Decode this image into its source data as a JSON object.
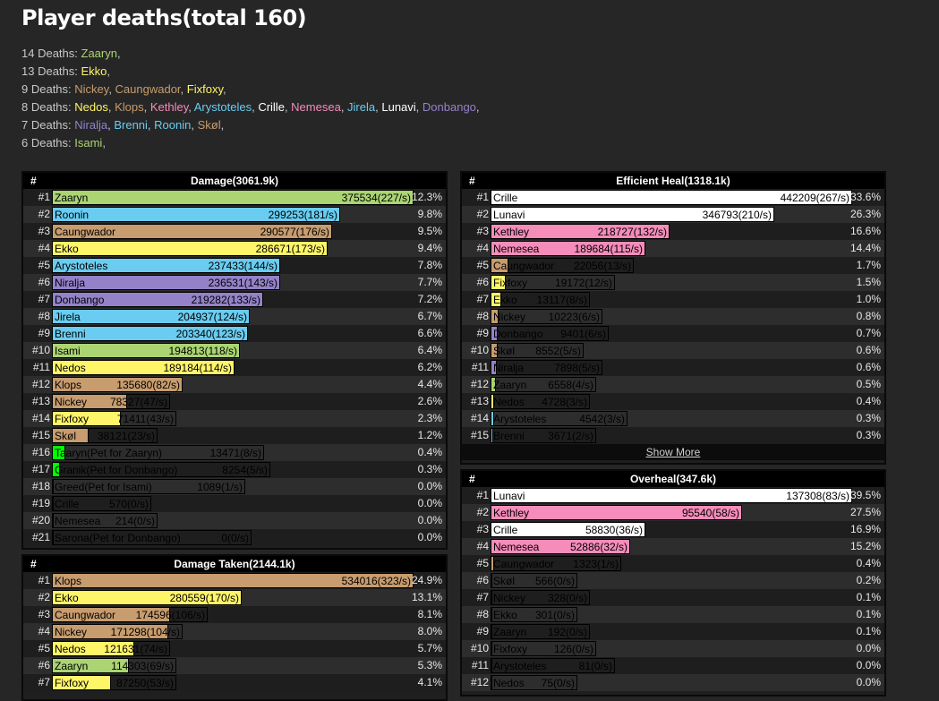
{
  "title": "Player deaths(total 160)",
  "colors": {
    "Hunter": "#abd473",
    "Mage": "#69ccf0",
    "Druid": "#ff7d0a",
    "Warrior": "#c79c6e",
    "Rogue": "#fff569",
    "Paladin": "#f58cba",
    "Priest": "#ffffff",
    "Warlock": "#9482c9",
    "Pet": "#00ff00",
    "Other": "#555555"
  },
  "deaths": [
    {
      "count": "14 Deaths:",
      "players": [
        {
          "name": "Zaaryn",
          "color": "#abd473"
        }
      ]
    },
    {
      "count": "13 Deaths:",
      "players": [
        {
          "name": "Ekko",
          "color": "#fff569"
        }
      ]
    },
    {
      "count": "9 Deaths:",
      "players": [
        {
          "name": "Nickey",
          "color": "#c79c6e"
        },
        {
          "name": "Caungwador",
          "color": "#c79c6e"
        },
        {
          "name": "Fixfoxy",
          "color": "#fff569"
        }
      ]
    },
    {
      "count": "8 Deaths:",
      "players": [
        {
          "name": "Nedos",
          "color": "#fff569"
        },
        {
          "name": "Klops",
          "color": "#c79c6e"
        },
        {
          "name": "Kethley",
          "color": "#f58cba"
        },
        {
          "name": "Arystoteles",
          "color": "#69ccf0"
        },
        {
          "name": "Crille",
          "color": "#ffffff"
        },
        {
          "name": "Nemesea",
          "color": "#f58cba"
        },
        {
          "name": "Jirela",
          "color": "#69ccf0"
        },
        {
          "name": "Lunavi",
          "color": "#ffffff"
        },
        {
          "name": "Donbango",
          "color": "#9482c9"
        }
      ]
    },
    {
      "count": "7 Deaths:",
      "players": [
        {
          "name": "Niralja",
          "color": "#9482c9"
        },
        {
          "name": "Brenni",
          "color": "#69ccf0"
        },
        {
          "name": "Roonin",
          "color": "#69ccf0"
        },
        {
          "name": "Skøl",
          "color": "#c79c6e"
        }
      ]
    },
    {
      "count": "6 Deaths:",
      "players": [
        {
          "name": "Isami",
          "color": "#abd473"
        }
      ]
    }
  ],
  "panels": [
    {
      "id": "damage",
      "hash": "#",
      "title": "Damage(3061.9k)",
      "rows": [
        {
          "rank": "#1",
          "name": "Zaaryn",
          "value": "375534(227/s)",
          "pct": "12.3%",
          "fill": 1.0,
          "color": "#abd473"
        },
        {
          "rank": "#2",
          "name": "Roonin",
          "value": "299253(181/s)",
          "pct": "9.8%",
          "fill": 0.797,
          "color": "#69ccf0"
        },
        {
          "rank": "#3",
          "name": "Caungwador",
          "value": "290577(176/s)",
          "pct": "9.5%",
          "fill": 0.774,
          "color": "#c79c6e"
        },
        {
          "rank": "#4",
          "name": "Ekko",
          "value": "286671(173/s)",
          "pct": "9.4%",
          "fill": 0.763,
          "color": "#fff569"
        },
        {
          "rank": "#5",
          "name": "Arystoteles",
          "value": "237433(144/s)",
          "pct": "7.8%",
          "fill": 0.632,
          "color": "#69ccf0"
        },
        {
          "rank": "#6",
          "name": "Niralja",
          "value": "236531(143/s)",
          "pct": "7.7%",
          "fill": 0.63,
          "color": "#9482c9"
        },
        {
          "rank": "#7",
          "name": "Donbango",
          "value": "219282(133/s)",
          "pct": "7.2%",
          "fill": 0.584,
          "color": "#9482c9"
        },
        {
          "rank": "#8",
          "name": "Jirela",
          "value": "204937(124/s)",
          "pct": "6.7%",
          "fill": 0.546,
          "color": "#69ccf0"
        },
        {
          "rank": "#9",
          "name": "Brenni",
          "value": "203340(123/s)",
          "pct": "6.6%",
          "fill": 0.541,
          "color": "#69ccf0"
        },
        {
          "rank": "#10",
          "name": "Isami",
          "value": "194813(118/s)",
          "pct": "6.4%",
          "fill": 0.519,
          "color": "#abd473"
        },
        {
          "rank": "#11",
          "name": "Nedos",
          "value": "189184(114/s)",
          "pct": "6.2%",
          "fill": 0.504,
          "color": "#fff569"
        },
        {
          "rank": "#12",
          "name": "Klops",
          "value": "135680(82/s)",
          "pct": "4.4%",
          "fill": 0.361,
          "color": "#c79c6e"
        },
        {
          "rank": "#13",
          "name": "Nickey",
          "value": "78327(47/s)",
          "pct": "2.6%",
          "fill": 0.209,
          "color": "#c79c6e"
        },
        {
          "rank": "#14",
          "name": "Fixfoxy",
          "value": "71411(43/s)",
          "pct": "2.3%",
          "fill": 0.19,
          "color": "#fff569"
        },
        {
          "rank": "#15",
          "name": "Skøl",
          "value": "38121(23/s)",
          "pct": "1.2%",
          "fill": 0.102,
          "color": "#c79c6e"
        },
        {
          "rank": "#16",
          "name": "Taaryn(Pet for Zaaryn)",
          "value": "13471(8/s)",
          "pct": "0.4%",
          "fill": 0.036,
          "color": "#00ff00"
        },
        {
          "rank": "#17",
          "name": "Granik(Pet for Donbango)",
          "value": "8254(5/s)",
          "pct": "0.3%",
          "fill": 0.022,
          "color": "#00ff00"
        },
        {
          "rank": "#18",
          "name": "Greed(Pet for Isami)",
          "value": "1089(1/s)",
          "pct": "0.0%",
          "fill": 0.003,
          "color": "#00ff00"
        },
        {
          "rank": "#19",
          "name": "Crille",
          "value": "570(0/s)",
          "pct": "0.0%",
          "fill": 0.0015,
          "color": "#ffffff"
        },
        {
          "rank": "#20",
          "name": "Nemesea",
          "value": "214(0/s)",
          "pct": "0.0%",
          "fill": 0.0006,
          "color": "#f58cba"
        },
        {
          "rank": "#21",
          "name": "Sarona(Pet for Donbango)",
          "value": "0(0/s)",
          "pct": "0.0%",
          "fill": 0,
          "color": "#00ff00"
        }
      ]
    },
    {
      "id": "damage-taken",
      "hash": "#",
      "title": "Damage Taken(2144.1k)",
      "rows": [
        {
          "rank": "#1",
          "name": "Klops",
          "value": "534016(323/s)",
          "pct": "24.9%",
          "fill": 1.0,
          "color": "#c79c6e"
        },
        {
          "rank": "#2",
          "name": "Ekko",
          "value": "280559(170/s)",
          "pct": "13.1%",
          "fill": 0.525,
          "color": "#fff569"
        },
        {
          "rank": "#3",
          "name": "Caungwador",
          "value": "174596(106/s)",
          "pct": "8.1%",
          "fill": 0.327,
          "color": "#c79c6e"
        },
        {
          "rank": "#4",
          "name": "Nickey",
          "value": "171298(104/s)",
          "pct": "8.0%",
          "fill": 0.321,
          "color": "#c79c6e"
        },
        {
          "rank": "#5",
          "name": "Nedos",
          "value": "121631(74/s)",
          "pct": "5.7%",
          "fill": 0.228,
          "color": "#fff569"
        },
        {
          "rank": "#6",
          "name": "Zaaryn",
          "value": "114303(69/s)",
          "pct": "5.3%",
          "fill": 0.214,
          "color": "#abd473"
        },
        {
          "rank": "#7",
          "name": "Fixfoxy",
          "value": "87250(53/s)",
          "pct": "4.1%",
          "fill": 0.163,
          "color": "#fff569"
        }
      ]
    },
    {
      "id": "efficient-heal",
      "hash": "#",
      "title": "Efficient Heal(1318.1k)",
      "more": "Show More",
      "rows": [
        {
          "rank": "#1",
          "name": "Crille",
          "value": "442209(267/s)",
          "pct": "33.6%",
          "fill": 1.0,
          "color": "#ffffff"
        },
        {
          "rank": "#2",
          "name": "Lunavi",
          "value": "346793(210/s)",
          "pct": "26.3%",
          "fill": 0.784,
          "color": "#ffffff"
        },
        {
          "rank": "#3",
          "name": "Kethley",
          "value": "218727(132/s)",
          "pct": "16.6%",
          "fill": 0.495,
          "color": "#f58cba"
        },
        {
          "rank": "#4",
          "name": "Nemesea",
          "value": "189684(115/s)",
          "pct": "14.4%",
          "fill": 0.429,
          "color": "#f58cba"
        },
        {
          "rank": "#5",
          "name": "Caungwador",
          "value": "22056(13/s)",
          "pct": "1.7%",
          "fill": 0.05,
          "color": "#c79c6e"
        },
        {
          "rank": "#6",
          "name": "Fixfoxy",
          "value": "19172(12/s)",
          "pct": "1.5%",
          "fill": 0.043,
          "color": "#fff569"
        },
        {
          "rank": "#7",
          "name": "Ekko",
          "value": "13117(8/s)",
          "pct": "1.0%",
          "fill": 0.03,
          "color": "#fff569"
        },
        {
          "rank": "#8",
          "name": "Nickey",
          "value": "10223(6/s)",
          "pct": "0.8%",
          "fill": 0.023,
          "color": "#c79c6e"
        },
        {
          "rank": "#9",
          "name": "Donbango",
          "value": "9401(6/s)",
          "pct": "0.7%",
          "fill": 0.021,
          "color": "#9482c9"
        },
        {
          "rank": "#10",
          "name": "Skøl",
          "value": "8552(5/s)",
          "pct": "0.6%",
          "fill": 0.019,
          "color": "#c79c6e"
        },
        {
          "rank": "#11",
          "name": "Niralja",
          "value": "7898(5/s)",
          "pct": "0.6%",
          "fill": 0.018,
          "color": "#9482c9"
        },
        {
          "rank": "#12",
          "name": "Zaaryn",
          "value": "6558(4/s)",
          "pct": "0.5%",
          "fill": 0.015,
          "color": "#abd473"
        },
        {
          "rank": "#13",
          "name": "Nedos",
          "value": "4728(3/s)",
          "pct": "0.4%",
          "fill": 0.011,
          "color": "#fff569"
        },
        {
          "rank": "#14",
          "name": "Arystoteles",
          "value": "4542(3/s)",
          "pct": "0.3%",
          "fill": 0.01,
          "color": "#69ccf0"
        },
        {
          "rank": "#15",
          "name": "Brenni",
          "value": "3671(2/s)",
          "pct": "0.3%",
          "fill": 0.008,
          "color": "#69ccf0"
        }
      ]
    },
    {
      "id": "overheal",
      "hash": "#",
      "title": "Overheal(347.6k)",
      "rows": [
        {
          "rank": "#1",
          "name": "Lunavi",
          "value": "137308(83/s)",
          "pct": "39.5%",
          "fill": 1.0,
          "color": "#ffffff"
        },
        {
          "rank": "#2",
          "name": "Kethley",
          "value": "95540(58/s)",
          "pct": "27.5%",
          "fill": 0.696,
          "color": "#f58cba"
        },
        {
          "rank": "#3",
          "name": "Crille",
          "value": "58830(36/s)",
          "pct": "16.9%",
          "fill": 0.428,
          "color": "#ffffff"
        },
        {
          "rank": "#4",
          "name": "Nemesea",
          "value": "52886(32/s)",
          "pct": "15.2%",
          "fill": 0.385,
          "color": "#f58cba"
        },
        {
          "rank": "#5",
          "name": "Caungwador",
          "value": "1323(1/s)",
          "pct": "0.4%",
          "fill": 0.01,
          "color": "#c79c6e"
        },
        {
          "rank": "#6",
          "name": "Skøl",
          "value": "566(0/s)",
          "pct": "0.2%",
          "fill": 0.004,
          "color": "#c79c6e"
        },
        {
          "rank": "#7",
          "name": "Nickey",
          "value": "328(0/s)",
          "pct": "0.1%",
          "fill": 0.002,
          "color": "#c79c6e"
        },
        {
          "rank": "#8",
          "name": "Ekko",
          "value": "301(0/s)",
          "pct": "0.1%",
          "fill": 0.002,
          "color": "#fff569"
        },
        {
          "rank": "#9",
          "name": "Zaaryn",
          "value": "192(0/s)",
          "pct": "0.1%",
          "fill": 0.001,
          "color": "#abd473"
        },
        {
          "rank": "#10",
          "name": "Fixfoxy",
          "value": "126(0/s)",
          "pct": "0.0%",
          "fill": 0.001,
          "color": "#fff569"
        },
        {
          "rank": "#11",
          "name": "Arystoteles",
          "value": "81(0/s)",
          "pct": "0.0%",
          "fill": 0.0006,
          "color": "#69ccf0"
        },
        {
          "rank": "#12",
          "name": "Nedos",
          "value": "75(0/s)",
          "pct": "0.0%",
          "fill": 0.0005,
          "color": "#fff569"
        }
      ]
    }
  ]
}
